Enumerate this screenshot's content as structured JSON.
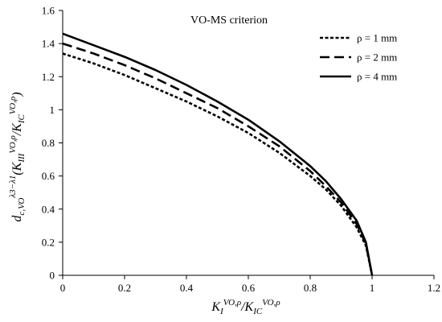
{
  "chart_data": {
    "type": "line",
    "title": "VO-MS criterion",
    "xlabel": {
      "main": "K",
      "sub1": "I",
      "sup1": "VO,ρ",
      "slash": "/K",
      "sub2": "IC",
      "sup2": "VO,ρ"
    },
    "ylabel": {
      "main": "d",
      "sub1": "c,VO",
      "sup1": "λ3−λ1",
      "paren_open": "(K",
      "sub2": "III",
      "sup2": "VO,ρ",
      "slash": "/K",
      "sub3": "IC",
      "sup3": "VO,ρ",
      "paren_close": ")"
    },
    "xlim": [
      0,
      1.2
    ],
    "ylim": [
      0,
      1.6
    ],
    "xticks": [
      "0",
      "0.2",
      "0.4",
      "0.6",
      "0.8",
      "1",
      "1.2"
    ],
    "yticks": [
      "0",
      "0.2",
      "0.4",
      "0.6",
      "0.8",
      "1",
      "1.2",
      "1.4",
      "1.6"
    ],
    "grid": false,
    "legend_position": "top-right",
    "series": [
      {
        "name": "ρ = 1 mm",
        "dash": "short",
        "x": [
          0,
          0.1,
          0.2,
          0.3,
          0.4,
          0.5,
          0.6,
          0.7,
          0.8,
          0.85,
          0.9,
          0.95,
          0.98,
          1.0
        ],
        "y": [
          1.34,
          1.28,
          1.21,
          1.13,
          1.05,
          0.96,
          0.86,
          0.74,
          0.6,
          0.52,
          0.42,
          0.29,
          0.18,
          0.0
        ]
      },
      {
        "name": "ρ = 2 mm",
        "dash": "long",
        "x": [
          0,
          0.1,
          0.2,
          0.3,
          0.4,
          0.5,
          0.6,
          0.7,
          0.8,
          0.85,
          0.9,
          0.95,
          0.98,
          1.0
        ],
        "y": [
          1.4,
          1.34,
          1.27,
          1.19,
          1.1,
          1.01,
          0.9,
          0.78,
          0.63,
          0.54,
          0.44,
          0.31,
          0.19,
          0.0
        ]
      },
      {
        "name": "ρ = 4 mm",
        "dash": "solid",
        "x": [
          0,
          0.1,
          0.2,
          0.3,
          0.4,
          0.5,
          0.6,
          0.7,
          0.8,
          0.85,
          0.9,
          0.95,
          0.98,
          1.0
        ],
        "y": [
          1.46,
          1.39,
          1.32,
          1.24,
          1.15,
          1.05,
          0.94,
          0.81,
          0.66,
          0.57,
          0.46,
          0.33,
          0.2,
          0.0
        ]
      }
    ]
  }
}
